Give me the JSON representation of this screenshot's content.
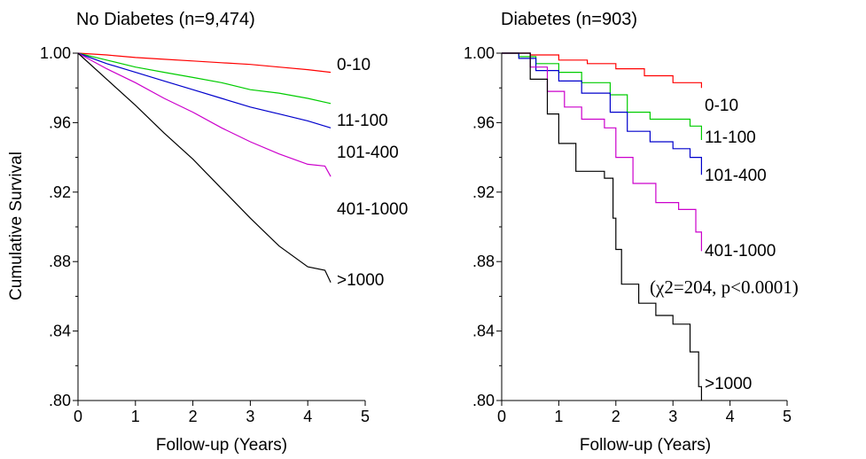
{
  "chart_data": [
    {
      "type": "line",
      "title": "No Diabetes (n=9,474)",
      "xlabel": "Follow-up (Years)",
      "ylabel": "Cumulative Survival",
      "xlim": [
        0,
        5
      ],
      "ylim": [
        0.8,
        1.0
      ],
      "x_ticks": [
        "0",
        "1",
        "2",
        "3",
        "4",
        "5"
      ],
      "y_ticks": [
        "1.00",
        ".96",
        ".92",
        ".88",
        ".84",
        ".80"
      ],
      "series": [
        {
          "name": "0-10",
          "color": "#ff0000",
          "step": false,
          "points": [
            [
              0,
              1.0
            ],
            [
              0.5,
              0.999
            ],
            [
              1,
              0.9975
            ],
            [
              1.5,
              0.9965
            ],
            [
              2,
              0.9955
            ],
            [
              2.5,
              0.9945
            ],
            [
              3,
              0.9935
            ],
            [
              3.5,
              0.992
            ],
            [
              4,
              0.9905
            ],
            [
              4.4,
              0.989
            ]
          ]
        },
        {
          "name": "11-100",
          "color": "#00cc00",
          "step": false,
          "points": [
            [
              0,
              1.0
            ],
            [
              0.5,
              0.996
            ],
            [
              1,
              0.992
            ],
            [
              1.5,
              0.989
            ],
            [
              2,
              0.986
            ],
            [
              2.5,
              0.983
            ],
            [
              3,
              0.979
            ],
            [
              3.5,
              0.977
            ],
            [
              4,
              0.974
            ],
            [
              4.4,
              0.971
            ]
          ]
        },
        {
          "name": "101-400",
          "color": "#0000cc",
          "step": false,
          "points": [
            [
              0,
              1.0
            ],
            [
              0.5,
              0.994
            ],
            [
              1,
              0.989
            ],
            [
              1.5,
              0.984
            ],
            [
              2,
              0.979
            ],
            [
              2.5,
              0.974
            ],
            [
              3,
              0.969
            ],
            [
              3.5,
              0.965
            ],
            [
              4,
              0.961
            ],
            [
              4.4,
              0.957
            ]
          ]
        },
        {
          "name": "401-1000",
          "color": "#cc00cc",
          "step": false,
          "points": [
            [
              0,
              1.0
            ],
            [
              0.5,
              0.991
            ],
            [
              1,
              0.983
            ],
            [
              1.5,
              0.974
            ],
            [
              2,
              0.966
            ],
            [
              2.5,
              0.957
            ],
            [
              3,
              0.949
            ],
            [
              3.5,
              0.942
            ],
            [
              4,
              0.936
            ],
            [
              4.3,
              0.935
            ],
            [
              4.4,
              0.929
            ]
          ]
        },
        {
          "name": ">1000",
          "color": "#000000",
          "step": false,
          "points": [
            [
              0,
              1.0
            ],
            [
              0.5,
              0.985
            ],
            [
              1,
              0.97
            ],
            [
              1.5,
              0.954
            ],
            [
              2,
              0.939
            ],
            [
              2.5,
              0.922
            ],
            [
              3,
              0.905
            ],
            [
              3.5,
              0.889
            ],
            [
              4,
              0.877
            ],
            [
              4.3,
              0.875
            ],
            [
              4.4,
              0.868
            ]
          ]
        }
      ],
      "labels": [
        {
          "text": "0-10",
          "series": "0-10"
        },
        {
          "text": "11-100",
          "series": "11-100"
        },
        {
          "text": "101-400",
          "series": "101-400"
        },
        {
          "text": "401-1000",
          "series": "401-1000"
        },
        {
          "text": ">1000",
          "series": ">1000"
        }
      ]
    },
    {
      "type": "line",
      "title": "Diabetes (n=903)",
      "xlabel": "Follow-up (Years)",
      "ylabel": "",
      "xlim": [
        0,
        5
      ],
      "ylim": [
        0.8,
        1.0
      ],
      "x_ticks": [
        "0",
        "1",
        "2",
        "3",
        "4",
        "5"
      ],
      "y_ticks": [
        "1.00",
        ".96",
        ".92",
        ".88",
        ".84",
        ".80"
      ],
      "annotation": "(χ2=204, p<0.0001)",
      "series": [
        {
          "name": "0-10",
          "color": "#ff0000",
          "step": true,
          "points": [
            [
              0,
              1.0
            ],
            [
              0.5,
              0.999
            ],
            [
              1,
              0.996
            ],
            [
              1.5,
              0.994
            ],
            [
              2,
              0.991
            ],
            [
              2.5,
              0.987
            ],
            [
              3,
              0.983
            ],
            [
              3.5,
              0.98
            ]
          ]
        },
        {
          "name": "11-100",
          "color": "#00cc00",
          "step": true,
          "points": [
            [
              0,
              1.0
            ],
            [
              0.3,
              0.998
            ],
            [
              0.6,
              0.994
            ],
            [
              1,
              0.989
            ],
            [
              1.4,
              0.983
            ],
            [
              1.9,
              0.976
            ],
            [
              2.2,
              0.966
            ],
            [
              2.6,
              0.962
            ],
            [
              3.3,
              0.958
            ],
            [
              3.5,
              0.95
            ]
          ]
        },
        {
          "name": "101-400",
          "color": "#0000cc",
          "step": true,
          "points": [
            [
              0,
              1.0
            ],
            [
              0.3,
              0.997
            ],
            [
              0.6,
              0.99
            ],
            [
              1,
              0.984
            ],
            [
              1.4,
              0.977
            ],
            [
              1.9,
              0.966
            ],
            [
              2.2,
              0.955
            ],
            [
              2.6,
              0.949
            ],
            [
              3.0,
              0.945
            ],
            [
              3.3,
              0.94
            ],
            [
              3.5,
              0.93
            ]
          ]
        },
        {
          "name": "401-1000",
          "color": "#cc00cc",
          "step": true,
          "points": [
            [
              0,
              1.0
            ],
            [
              0.5,
              0.992
            ],
            [
              0.8,
              0.978
            ],
            [
              1.1,
              0.969
            ],
            [
              1.4,
              0.962
            ],
            [
              1.8,
              0.957
            ],
            [
              2.0,
              0.94
            ],
            [
              2.3,
              0.925
            ],
            [
              2.7,
              0.914
            ],
            [
              3.1,
              0.91
            ],
            [
              3.4,
              0.897
            ],
            [
              3.5,
              0.886
            ]
          ]
        },
        {
          "name": ">1000",
          "color": "#000000",
          "step": true,
          "points": [
            [
              0,
              1.0
            ],
            [
              0.5,
              0.985
            ],
            [
              0.8,
              0.965
            ],
            [
              1,
              0.948
            ],
            [
              1.3,
              0.932
            ],
            [
              1.8,
              0.928
            ],
            [
              1.95,
              0.905
            ],
            [
              2.0,
              0.887
            ],
            [
              2.1,
              0.867
            ],
            [
              2.4,
              0.856
            ],
            [
              2.7,
              0.849
            ],
            [
              3.0,
              0.844
            ],
            [
              3.3,
              0.828
            ],
            [
              3.45,
              0.808
            ],
            [
              3.5,
              0.8
            ]
          ]
        }
      ],
      "labels": [
        {
          "text": "0-10",
          "series": "0-10"
        },
        {
          "text": "11-100",
          "series": "11-100"
        },
        {
          "text": "101-400",
          "series": "101-400"
        },
        {
          "text": "401-1000",
          "series": "401-1000"
        },
        {
          "text": ">1000",
          "series": ">1000"
        }
      ]
    }
  ]
}
